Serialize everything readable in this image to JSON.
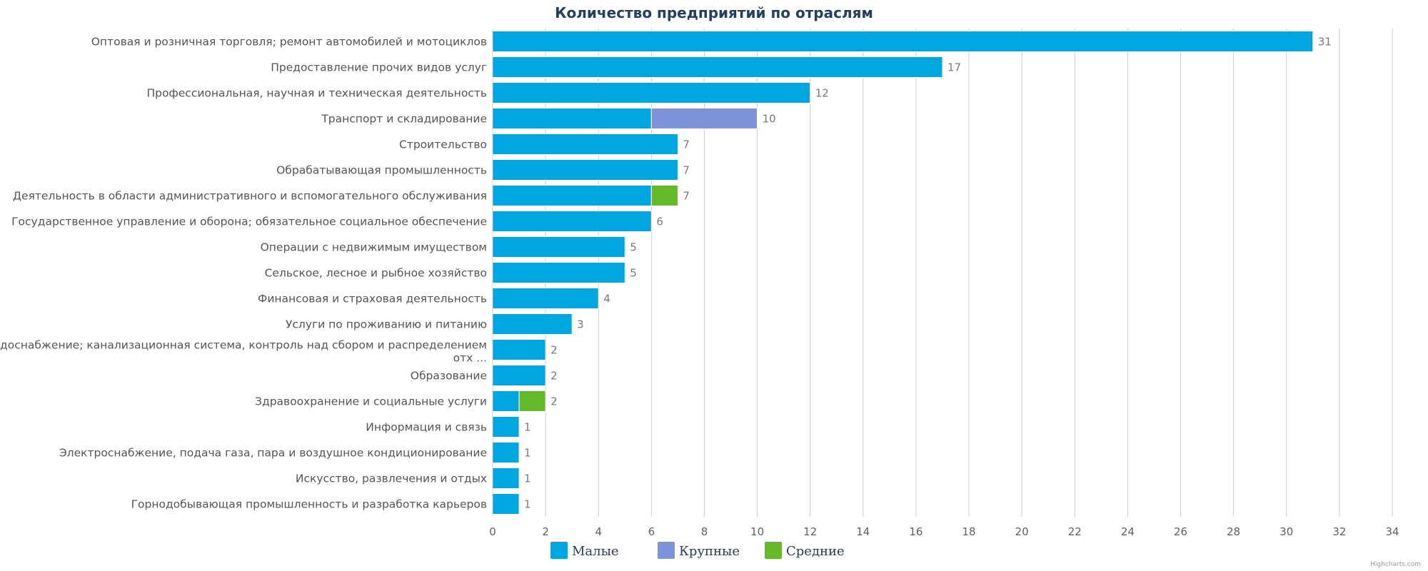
{
  "chart_data": {
    "type": "bar",
    "orientation": "horizontal",
    "stacked": true,
    "title": "Количество предприятий по отраслям",
    "xlabel": "",
    "ylabel": "",
    "xlim": [
      0,
      34
    ],
    "x_ticks": [
      0,
      2,
      4,
      6,
      8,
      10,
      12,
      14,
      16,
      18,
      20,
      22,
      24,
      26,
      28,
      30,
      32,
      34
    ],
    "grid": true,
    "legend_position": "bottom-center",
    "categories": [
      "Оптовая и розничная торговля; ремонт автомобилей и мотоциклов",
      "Предоставление прочих видов услуг",
      "Профессиональная, научная и техническая деятельность",
      "Транспорт и складирование",
      "Строительство",
      "Обрабатывающая промышленность",
      "Деятельность в области административного и вспомогательного обслуживания",
      "Государственное управление и оборона; обязательное социальное обеспечение",
      "Операции с недвижимым имуществом",
      "Сельское, лесное и рыбное хозяйство",
      "Финансовая и страховая деятельность",
      "Услуги по проживанию и питанию",
      "Водоснабжение; канализационная система, контроль над сбором и распределением",
      "Образование",
      "Здравоохранение и социальные услуги",
      "Информация и связь",
      "Электроснабжение, подача газа, пара и воздушное кондиционирование",
      "Искусство, развлечения и отдых",
      "Горнодобывающая промышленность и разработка карьеров"
    ],
    "category_label_second_lines": {
      "12": "отх ..."
    },
    "series": [
      {
        "name": "Малые",
        "color": "#00a6e0",
        "values": [
          31,
          17,
          12,
          6,
          7,
          7,
          6,
          6,
          5,
          5,
          4,
          3,
          2,
          2,
          1,
          1,
          1,
          1,
          1
        ]
      },
      {
        "name": "Крупные",
        "color": "#7f93db",
        "values": [
          0,
          0,
          0,
          4,
          0,
          0,
          0,
          0,
          0,
          0,
          0,
          0,
          0,
          0,
          0,
          0,
          0,
          0,
          0
        ]
      },
      {
        "name": "Средние",
        "color": "#64b92b",
        "values": [
          0,
          0,
          0,
          0,
          0,
          0,
          1,
          0,
          0,
          0,
          0,
          0,
          0,
          0,
          1,
          0,
          0,
          0,
          0
        ]
      }
    ],
    "totals": [
      31,
      17,
      12,
      10,
      7,
      7,
      7,
      6,
      5,
      5,
      4,
      3,
      2,
      2,
      2,
      1,
      1,
      1,
      1
    ]
  },
  "credits": "Highcharts.com",
  "colors": {
    "title": "#24405e",
    "grid": "#cccccc",
    "axis_text": "#606060"
  }
}
